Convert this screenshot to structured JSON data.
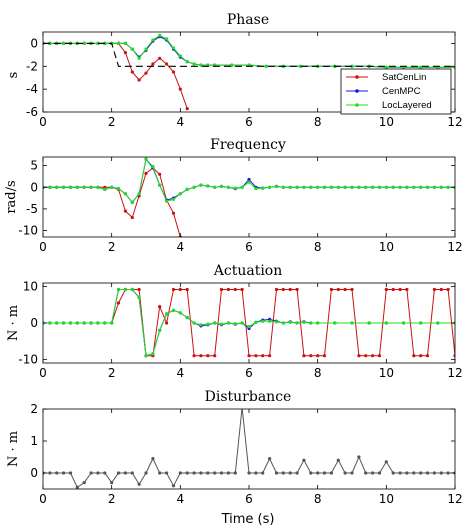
{
  "colors": {
    "SatCenLin": "#cc1111",
    "CenMPC": "#1515e0",
    "LocLayered": "#22dd22",
    "reference": "#000000",
    "disturbance": "#555555"
  },
  "chart_data": [
    {
      "type": "line",
      "title": "Phase",
      "ylabel": "s",
      "xlabel": "",
      "xlim": [
        0,
        12
      ],
      "ylim": [
        -6,
        1
      ],
      "xticks": [
        0,
        2,
        4,
        6,
        8,
        10,
        12
      ],
      "yticks": [
        0,
        -2,
        -4,
        -6
      ],
      "grid": false,
      "legend": {
        "placement": "right",
        "entries": [
          "SatCenLin",
          "CenMPC",
          "LocLayered"
        ]
      },
      "series": [
        {
          "name": "SatCenLin",
          "x": [
            0,
            0.2,
            0.4,
            0.6,
            0.8,
            1.0,
            1.2,
            1.4,
            1.6,
            1.8,
            2.0,
            2.2,
            2.4,
            2.6,
            2.8,
            3.0,
            3.2,
            3.4,
            3.6,
            3.8,
            4.0,
            4.2
          ],
          "y": [
            0,
            0,
            0,
            0,
            0,
            0,
            0,
            0,
            0,
            0,
            0,
            0,
            -0.8,
            -2.5,
            -3.2,
            -2.6,
            -1.8,
            -1.3,
            -1.8,
            -2.5,
            -4.0,
            -5.7
          ]
        },
        {
          "name": "CenMPC",
          "x": [
            0,
            0.2,
            0.4,
            0.6,
            0.8,
            1.0,
            1.2,
            1.4,
            1.6,
            1.8,
            2.0,
            2.2,
            2.4,
            2.6,
            2.8,
            3.0,
            3.2,
            3.4,
            3.6,
            3.8,
            4.0,
            4.2,
            4.4,
            4.6,
            4.8,
            5.0,
            5.5,
            6.0,
            6.5,
            7.0,
            7.5,
            8.0,
            8.5,
            9.0,
            9.5,
            10.0,
            10.5,
            11.0,
            11.5,
            12.0
          ],
          "y": [
            0,
            0,
            0,
            0,
            0,
            0,
            0,
            0,
            0,
            0,
            0,
            0,
            0,
            -0.5,
            -1.2,
            -0.6,
            0.2,
            0.6,
            0.3,
            -0.5,
            -1.2,
            -1.6,
            -1.8,
            -1.9,
            -1.9,
            -1.9,
            -1.9,
            -1.9,
            -2.0,
            -2.0,
            -2.0,
            -2.0,
            -2.0,
            -2.0,
            -2.0,
            -2.1,
            -2.1,
            -2.1,
            -2.1,
            -2.1
          ]
        },
        {
          "name": "LocLayered",
          "x": [
            0,
            0.2,
            0.4,
            0.6,
            0.8,
            1.0,
            1.2,
            1.4,
            1.6,
            1.8,
            2.0,
            2.2,
            2.4,
            2.6,
            2.8,
            3.0,
            3.2,
            3.4,
            3.6,
            3.8,
            4.0,
            4.2,
            4.4,
            4.6,
            4.8,
            5.0,
            5.5,
            6.0,
            6.5,
            7.0,
            7.5,
            8.0,
            8.5,
            9.0,
            9.5,
            10.0,
            10.5,
            11.0,
            11.5,
            12.0
          ],
          "y": [
            0,
            0,
            0,
            0,
            0,
            0,
            0,
            0,
            0,
            0,
            0,
            0,
            0,
            -0.5,
            -1.3,
            -0.5,
            0.3,
            0.7,
            0.4,
            -0.4,
            -1.1,
            -1.6,
            -1.8,
            -1.9,
            -1.9,
            -1.9,
            -1.9,
            -1.9,
            -2.0,
            -2.0,
            -2.0,
            -2.0,
            -2.0,
            -2.0,
            -2.0,
            -2.1,
            -2.1,
            -2.1,
            -2.1,
            -2.1
          ]
        },
        {
          "name": "reference",
          "x": [
            0,
            2.0,
            2.2,
            12
          ],
          "y": [
            0,
            0,
            -2,
            -2
          ],
          "dashed": true
        }
      ]
    },
    {
      "type": "line",
      "title": "Frequency",
      "ylabel": "rad/s",
      "xlabel": "",
      "xlim": [
        0,
        12
      ],
      "ylim": [
        -11.5,
        7
      ],
      "xticks": [
        0,
        2,
        4,
        6,
        8,
        10,
        12
      ],
      "yticks": [
        5,
        0,
        -5,
        -10
      ],
      "grid": false,
      "series": [
        {
          "name": "SatCenLin",
          "x": [
            0,
            0.2,
            0.4,
            0.6,
            0.8,
            1.0,
            1.2,
            1.4,
            1.6,
            1.8,
            2.0,
            2.2,
            2.4,
            2.6,
            2.8,
            3.0,
            3.2,
            3.4,
            3.6,
            3.8,
            4.0,
            4.2
          ],
          "y": [
            0,
            0,
            0,
            0,
            0,
            0,
            0,
            0,
            0,
            0,
            0,
            -0.5,
            -5.5,
            -7.0,
            -2.0,
            3.2,
            4.5,
            3.0,
            -3.0,
            -6.0,
            -11.5,
            -14
          ]
        },
        {
          "name": "CenMPC",
          "x": [
            0,
            0.2,
            0.4,
            0.6,
            0.8,
            1.0,
            1.2,
            1.4,
            1.6,
            1.8,
            2.0,
            2.2,
            2.4,
            2.6,
            2.8,
            3.0,
            3.2,
            3.4,
            3.6,
            3.8,
            4.0,
            4.2,
            4.4,
            4.6,
            4.8,
            5.0,
            5.2,
            5.4,
            5.6,
            5.8,
            6.0,
            6.2,
            6.4,
            6.6,
            6.8,
            7.0,
            7.2,
            7.4,
            7.6,
            7.8,
            8.0,
            8.2,
            8.4,
            8.6,
            8.8,
            9.0,
            9.2,
            9.4,
            9.6,
            9.8,
            10.0,
            10.2,
            10.4,
            10.6,
            10.8,
            11.0,
            11.2,
            11.4,
            11.6,
            11.8,
            12.0
          ],
          "y": [
            0,
            0,
            0,
            0,
            0,
            0,
            0,
            0,
            0,
            -0.5,
            0,
            -0.3,
            -1.5,
            -3.5,
            -1.5,
            6.5,
            4.5,
            0.5,
            -3.0,
            -2.5,
            -1.5,
            -0.5,
            0,
            0.5,
            0.3,
            0,
            0.2,
            0,
            -0.3,
            0,
            1.8,
            0,
            -0.2,
            0,
            0.2,
            0,
            0,
            0,
            0,
            0,
            0,
            0,
            0,
            0,
            0,
            0,
            0,
            0,
            0,
            0,
            0,
            0,
            0,
            0,
            0,
            0,
            0,
            0,
            0,
            0,
            0
          ]
        },
        {
          "name": "LocLayered",
          "x": [
            0,
            0.2,
            0.4,
            0.6,
            0.8,
            1.0,
            1.2,
            1.4,
            1.6,
            1.8,
            2.0,
            2.2,
            2.4,
            2.6,
            2.8,
            3.0,
            3.2,
            3.4,
            3.6,
            3.8,
            4.0,
            4.2,
            4.4,
            4.6,
            4.8,
            5.0,
            5.2,
            5.4,
            5.6,
            5.8,
            6.0,
            6.2,
            6.4,
            6.6,
            6.8,
            7.0,
            7.2,
            7.4,
            7.6,
            7.8,
            8.0,
            8.2,
            8.4,
            8.6,
            8.8,
            9.0,
            9.2,
            9.4,
            9.6,
            9.8,
            10.0,
            10.2,
            10.4,
            10.6,
            10.8,
            11.0,
            11.2,
            11.4,
            11.6,
            11.8,
            12.0
          ],
          "y": [
            0,
            0,
            0,
            0,
            0,
            0,
            0,
            0,
            0,
            -0.5,
            0,
            -0.3,
            -1.5,
            -3.5,
            -1.5,
            6.5,
            4.8,
            0.5,
            -3.2,
            -2.8,
            -1.5,
            -0.5,
            0,
            0.5,
            0.3,
            0,
            0.2,
            0,
            -0.2,
            0,
            1.2,
            -0.3,
            -0.2,
            0,
            0.2,
            0,
            0,
            0,
            0,
            0,
            0,
            0,
            0,
            0,
            0,
            0,
            0,
            0,
            0,
            0,
            0,
            0,
            0,
            0,
            0,
            0,
            0,
            0,
            0,
            0,
            0
          ]
        }
      ]
    },
    {
      "type": "line",
      "title": "Actuation",
      "ylabel": "N · m",
      "xlabel": "",
      "xlim": [
        0,
        12
      ],
      "ylim": [
        -11,
        11
      ],
      "xticks": [
        0,
        2,
        4,
        6,
        8,
        10,
        12
      ],
      "yticks": [
        10,
        0,
        -10
      ],
      "grid": false,
      "series": [
        {
          "name": "SatCenLin",
          "x": [
            0,
            0.2,
            0.4,
            0.6,
            0.8,
            1.0,
            1.2,
            1.4,
            1.6,
            1.8,
            2.0,
            2.2,
            2.4,
            2.6,
            2.8,
            3.0,
            3.2,
            3.4,
            3.6,
            3.8,
            4.0,
            4.2,
            4.4,
            4.6,
            4.8,
            5.0,
            5.2,
            5.4,
            5.6,
            5.8,
            6.0,
            6.2,
            6.4,
            6.6,
            6.8,
            7.0,
            7.2,
            7.4,
            7.6,
            7.8,
            8.0,
            8.2,
            8.4,
            8.6,
            8.8,
            9.0,
            9.2,
            9.4,
            9.6,
            9.8,
            10.0,
            10.2,
            10.4,
            10.6,
            10.8,
            11.0,
            11.2,
            11.4,
            11.6,
            11.8,
            12.0
          ],
          "y": [
            0,
            0,
            0,
            0,
            0,
            0,
            0,
            0,
            0,
            0,
            0,
            5.5,
            9.2,
            9.2,
            9.2,
            -9,
            -9,
            4.5,
            0,
            9.2,
            9.2,
            9.2,
            -9,
            -9,
            -9,
            -9,
            9.2,
            9.2,
            9.2,
            9.2,
            -9,
            -9,
            -9,
            -9,
            9.2,
            9.2,
            9.2,
            9.2,
            -9,
            -9,
            -9,
            -9,
            9.2,
            9.2,
            9.2,
            9.2,
            -9,
            -9,
            -9,
            -9,
            9.2,
            9.2,
            9.2,
            9.2,
            -9,
            -9,
            -9,
            9.2,
            9.2,
            9.2,
            -9
          ]
        },
        {
          "name": "CenMPC",
          "x": [
            0,
            0.2,
            0.4,
            0.6,
            0.8,
            1.0,
            1.2,
            1.4,
            1.6,
            1.8,
            2.0,
            2.2,
            2.4,
            2.6,
            2.8,
            3.0,
            3.2,
            3.4,
            3.6,
            3.8,
            4.0,
            4.2,
            4.4,
            4.6,
            4.8,
            5.0,
            5.2,
            5.4,
            5.6,
            5.8,
            6.0,
            6.2,
            6.4,
            6.6,
            6.8,
            7.0,
            7.2,
            7.4,
            7.6,
            7.8,
            8.0,
            8.5,
            9.0,
            9.5,
            10.0,
            10.5,
            11.0,
            11.5,
            12.0
          ],
          "y": [
            0,
            0,
            0,
            0,
            0,
            0,
            0,
            0,
            0,
            0,
            0,
            9.2,
            9.2,
            9.2,
            7,
            -9,
            -8.5,
            -2,
            2.5,
            3.5,
            2.8,
            1.5,
            0,
            -0.8,
            -0.5,
            0,
            -0.5,
            0,
            -0.3,
            0,
            -1.5,
            0.2,
            0.8,
            1.0,
            0.5,
            0,
            0.3,
            0,
            0.3,
            0,
            0,
            0,
            0,
            0,
            0,
            0,
            0,
            0,
            0
          ]
        },
        {
          "name": "LocLayered",
          "x": [
            0,
            0.2,
            0.4,
            0.6,
            0.8,
            1.0,
            1.2,
            1.4,
            1.6,
            1.8,
            2.0,
            2.2,
            2.4,
            2.6,
            2.8,
            3.0,
            3.2,
            3.4,
            3.6,
            3.8,
            4.0,
            4.2,
            4.4,
            4.6,
            4.8,
            5.0,
            5.2,
            5.4,
            5.6,
            5.8,
            6.0,
            6.2,
            6.4,
            6.6,
            6.8,
            7.0,
            7.2,
            7.4,
            7.6,
            7.8,
            8.0,
            8.5,
            9.0,
            9.5,
            10.0,
            10.5,
            11.0,
            11.5,
            12.0
          ],
          "y": [
            0,
            0,
            0,
            0,
            0,
            0,
            0,
            0,
            0,
            0,
            0,
            9.2,
            9.2,
            9.2,
            7,
            -9,
            -8.5,
            -2,
            2.5,
            3.5,
            2.8,
            1.5,
            0,
            -0.5,
            -0.3,
            0,
            -0.3,
            0,
            -0.2,
            0,
            -1.0,
            0.2,
            0.5,
            0.5,
            0.3,
            0,
            0.2,
            0,
            0.2,
            0,
            0,
            0,
            0,
            0,
            0,
            0,
            0,
            0,
            0
          ]
        }
      ]
    },
    {
      "type": "line",
      "title": "Disturbance",
      "ylabel": "N · m",
      "xlabel": "Time (s)",
      "xlim": [
        0,
        12
      ],
      "ylim": [
        -0.5,
        2
      ],
      "xticks": [
        0,
        2,
        4,
        6,
        8,
        10,
        12
      ],
      "yticks": [
        2,
        1,
        0
      ],
      "grid": false,
      "series": [
        {
          "name": "",
          "x": [
            0,
            0.2,
            0.4,
            0.6,
            0.8,
            1.0,
            1.2,
            1.4,
            1.6,
            1.8,
            2.0,
            2.2,
            2.4,
            2.6,
            2.8,
            3.0,
            3.2,
            3.4,
            3.6,
            3.8,
            4.0,
            4.2,
            4.4,
            4.6,
            4.8,
            5.0,
            5.2,
            5.4,
            5.6,
            5.8,
            6.0,
            6.2,
            6.4,
            6.6,
            6.8,
            7.0,
            7.2,
            7.4,
            7.6,
            7.8,
            8.0,
            8.2,
            8.4,
            8.6,
            8.8,
            9.0,
            9.2,
            9.4,
            9.6,
            9.8,
            10.0,
            10.2,
            10.4,
            10.6,
            10.8,
            11.0,
            11.2,
            11.4,
            11.6,
            11.8,
            12.0
          ],
          "y": [
            0,
            0,
            0,
            0,
            0,
            -0.45,
            -0.3,
            0,
            0,
            0,
            -0.3,
            0,
            0,
            0,
            -0.35,
            0,
            0.45,
            0,
            0,
            -0.4,
            0,
            0,
            0,
            0,
            0,
            0,
            0,
            0,
            0,
            2.05,
            0,
            0,
            0,
            0.45,
            0,
            0,
            0,
            0,
            0.4,
            0,
            0,
            0,
            0,
            0.4,
            0,
            0,
            0.5,
            0,
            0,
            0,
            0.35,
            0,
            0,
            0,
            0,
            0,
            0,
            0,
            0,
            0,
            0
          ]
        }
      ]
    }
  ]
}
